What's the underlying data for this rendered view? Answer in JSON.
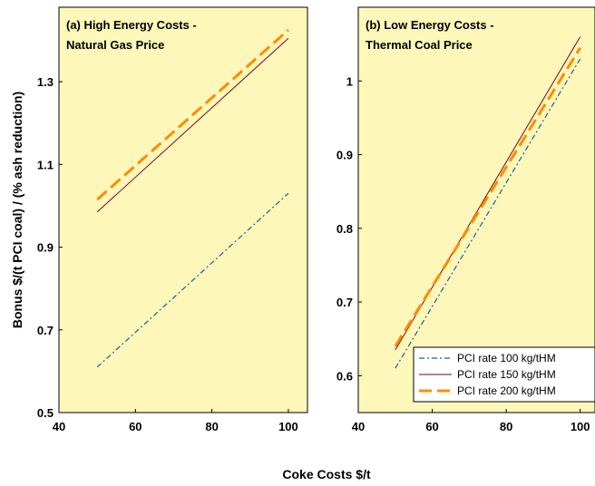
{
  "chart_data": [
    {
      "type": "line",
      "title": "(a) High Energy Costs -\nNatural Gas Price",
      "ylabel": "Bonus $/(t PCI coal) / (% ash reduction)",
      "xlabel": "Coke Costs $/t",
      "xlim": [
        40,
        105
      ],
      "xticks": [
        40,
        60,
        80,
        100
      ],
      "ylim": [
        0.5,
        1.48
      ],
      "yticks": [
        0.5,
        0.7,
        0.9,
        1.1,
        1.3
      ],
      "x": [
        50,
        100
      ],
      "series": [
        {
          "color": "#1f5fa0",
          "values": [
            0.61,
            1.03
          ]
        },
        {
          "color": "#800020",
          "values": [
            0.985,
            1.405
          ]
        },
        {
          "color": "#ff8c00",
          "values": [
            1.015,
            1.425
          ]
        }
      ]
    },
    {
      "type": "line",
      "title": "(b) Low Energy Costs -\nThermal Coal Price",
      "xlim": [
        40,
        104
      ],
      "xticks": [
        40,
        60,
        80,
        100
      ],
      "ylim": [
        0.55,
        1.1
      ],
      "yticks": [
        0.6,
        0.7,
        0.8,
        0.9,
        1.0
      ],
      "x": [
        50,
        100
      ],
      "legend": "lower right",
      "series": [
        {
          "name": "PCI rate 100 kg/tHM",
          "color": "#1f5fa0",
          "values": [
            0.61,
            1.03
          ]
        },
        {
          "name": "PCI rate 150 kg/tHM",
          "color": "#800020",
          "values": [
            0.635,
            1.06
          ]
        },
        {
          "name": "PCI rate 200 kg/tHM",
          "color": "#ff8c00",
          "values": [
            0.64,
            1.045
          ]
        }
      ]
    }
  ]
}
